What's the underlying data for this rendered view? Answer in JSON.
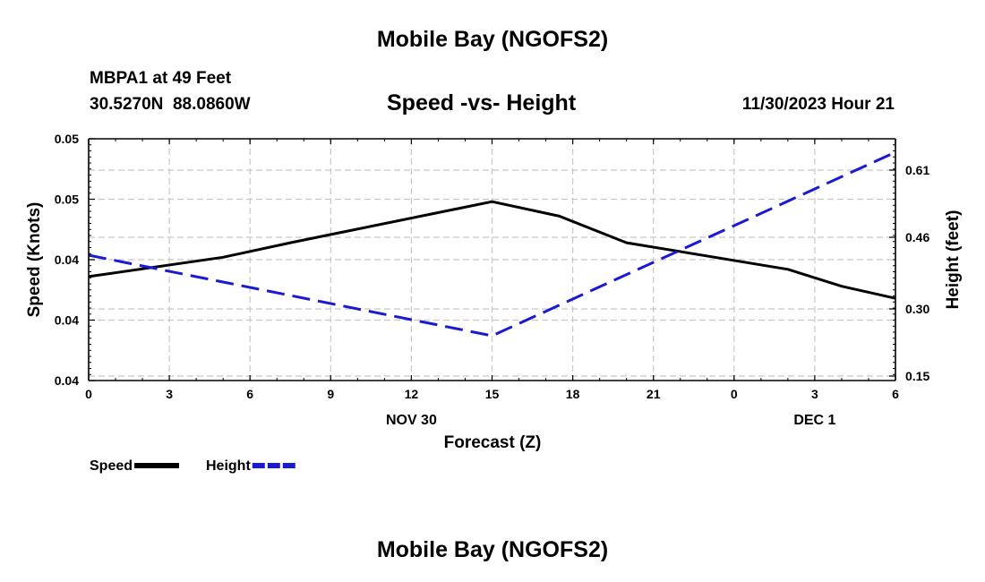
{
  "header": {
    "title": "Mobile Bay (NGOFS2)",
    "station": "MBPA1 at 49 Feet",
    "coords": "30.5270N  88.0860W",
    "subtitle": "Speed -vs- Height",
    "datetime": "11/30/2023 Hour 21"
  },
  "footer": {
    "title": "Mobile Bay (NGOFS2)"
  },
  "chart_data": {
    "type": "line",
    "title": "Mobile Bay (NGOFS2)",
    "subtitle": "Speed -vs- Height",
    "xlabel": "Forecast (Z)",
    "ylabel_left": "Speed (Knots)",
    "ylabel_right": "Height (feet)",
    "x_ticks": [
      "0",
      "3",
      "6",
      "9",
      "12",
      "15",
      "18",
      "21",
      "0",
      "3",
      "6"
    ],
    "x_date_labels": [
      {
        "label": "NOV 30",
        "x": 12
      },
      {
        "label": "DEC 1",
        "x": 27
      }
    ],
    "x_range": [
      0,
      30
    ],
    "y_left_ticks": [
      "0.04",
      "0.04",
      "0.04",
      "0.05",
      "0.05"
    ],
    "y_left_range": [
      0.04,
      0.05
    ],
    "y_right_ticks": [
      "0.15",
      "0.30",
      "0.46",
      "0.61"
    ],
    "y_right_range": [
      0.14,
      0.68
    ],
    "grid": true,
    "legend_position": "bottom-left",
    "series": [
      {
        "name": "Speed",
        "axis": "left",
        "color": "#000000",
        "style": "solid",
        "x": [
          0,
          5,
          7.5,
          15,
          17.5,
          20,
          26,
          28,
          30
        ],
        "y": [
          0.0443,
          0.0451,
          0.0457,
          0.0474,
          0.0468,
          0.0457,
          0.0446,
          0.0439,
          0.0434
        ]
      },
      {
        "name": "Height",
        "axis": "right",
        "color": "#1a1ad4",
        "style": "dashed",
        "x": [
          0,
          15,
          30
        ],
        "y": [
          0.42,
          0.24,
          0.65
        ]
      }
    ]
  }
}
